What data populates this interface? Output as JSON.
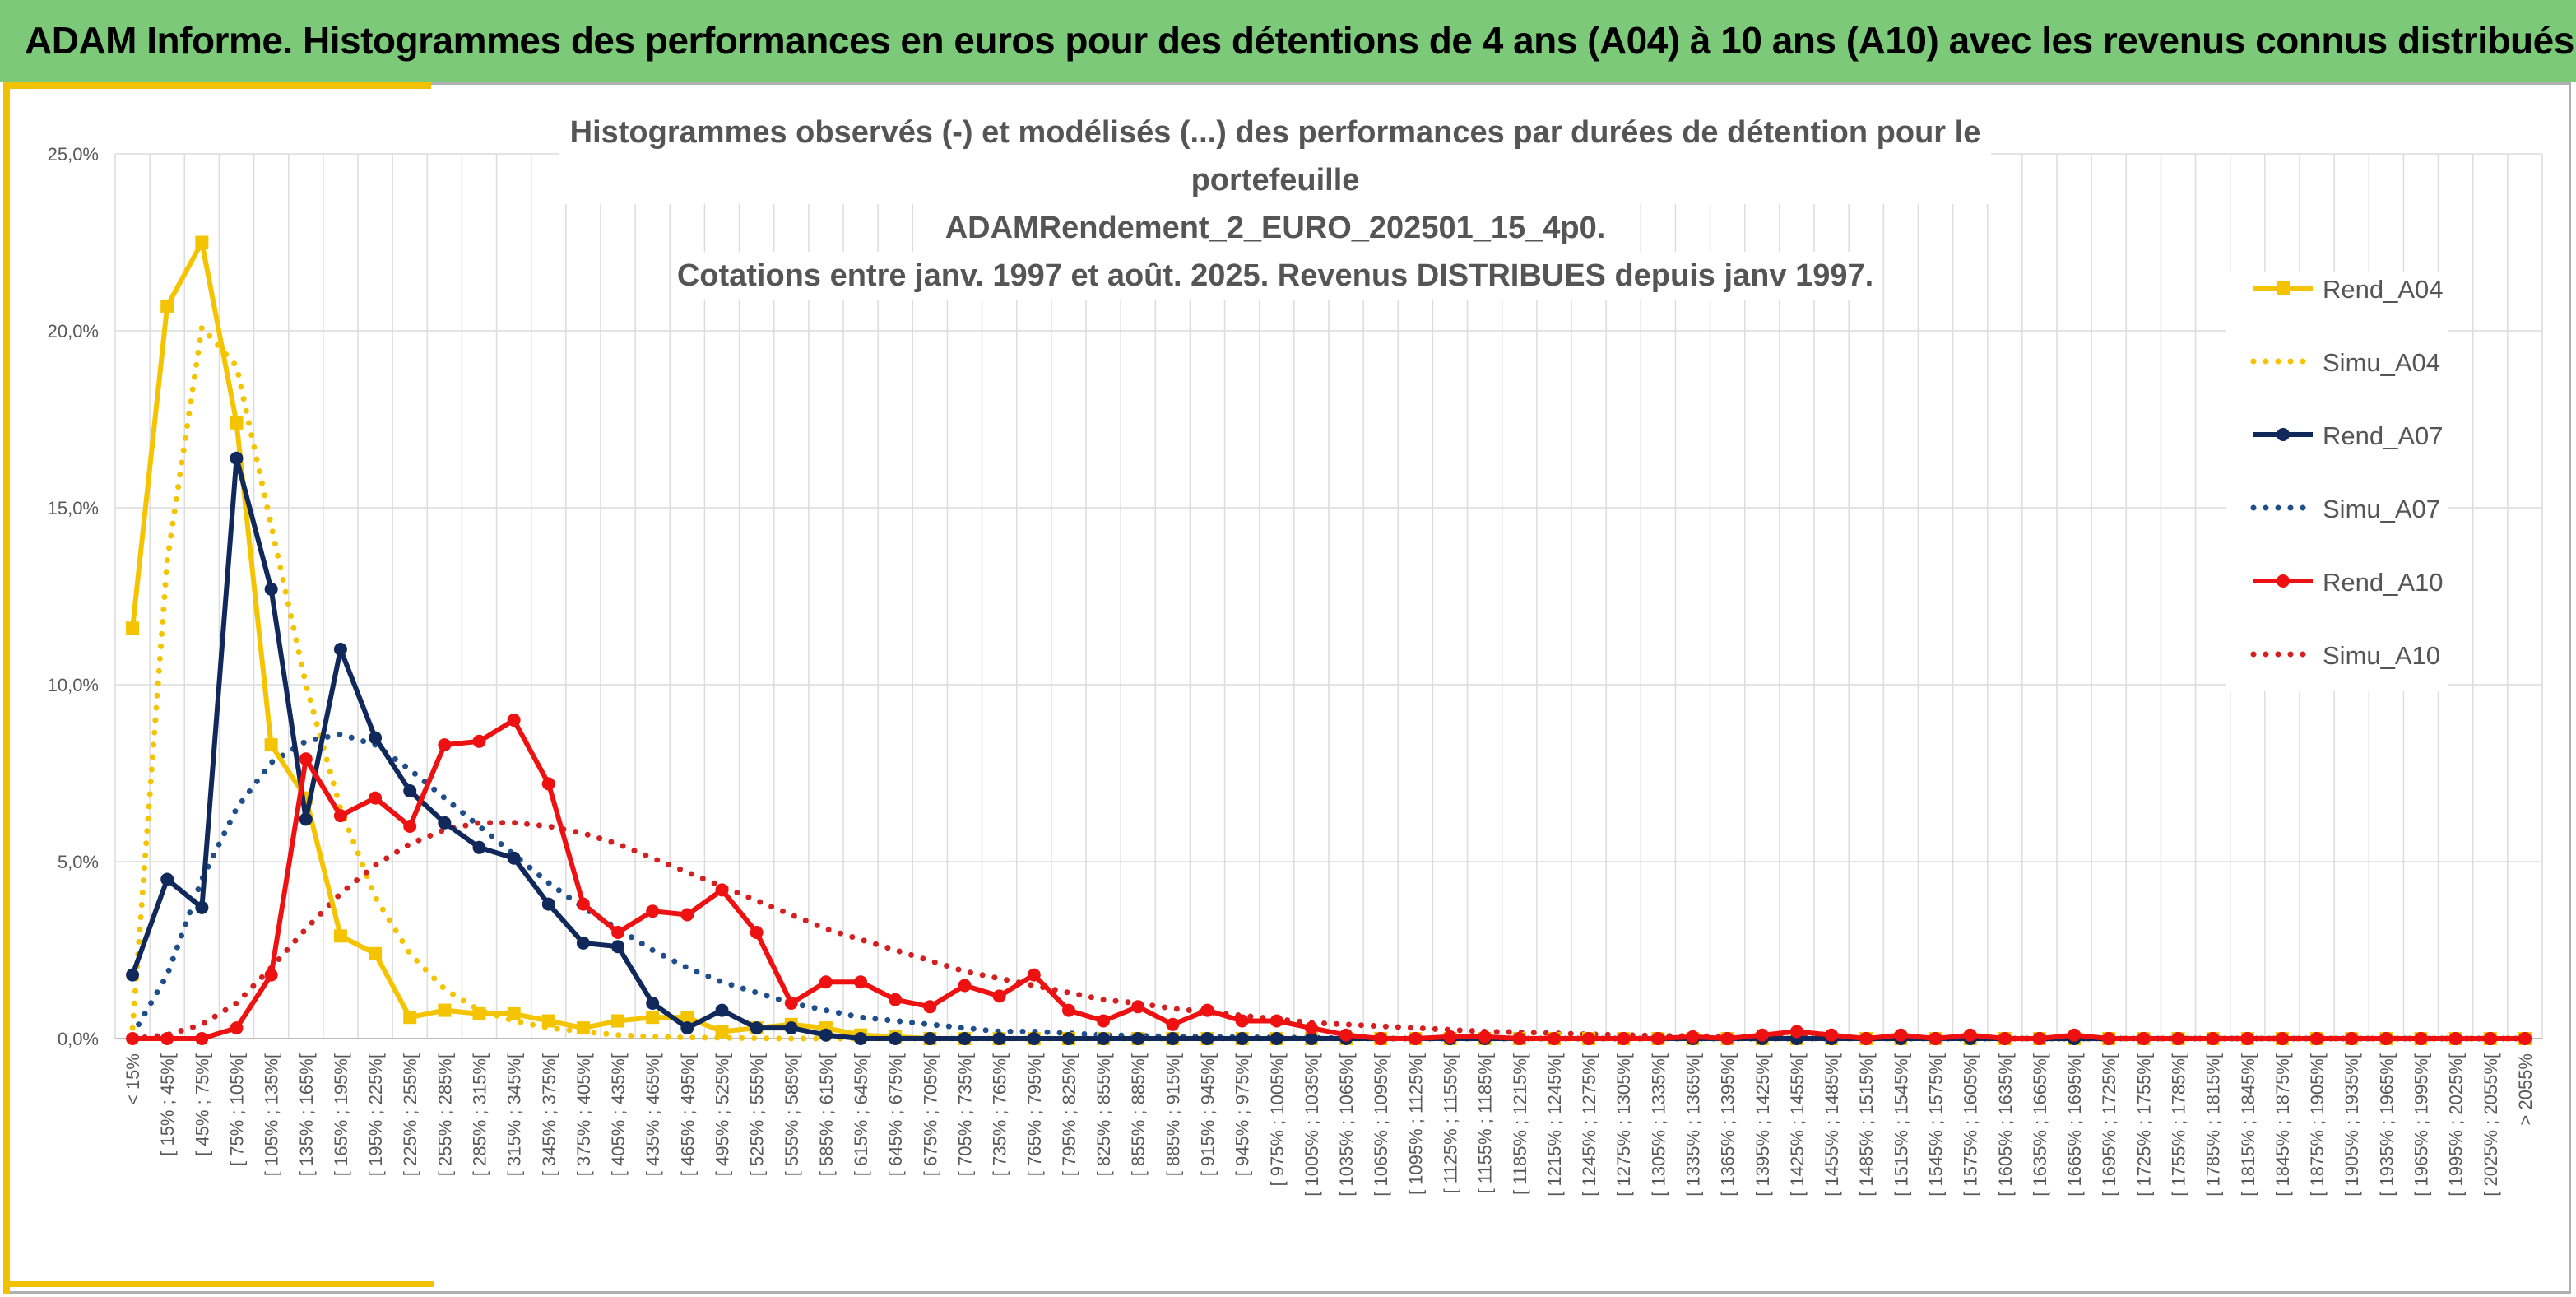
{
  "header": {
    "title": "ADAM Informe. Histogrammes des performances en euros pour des détentions de 4 ans (A04) à 10 ans (A10) avec les revenus connus distribués"
  },
  "chart_data": {
    "type": "line",
    "title_lines": [
      "Histogrammes observés (-) et modélisés (...) des performances par durées de détention pour le portefeuille",
      "ADAMRendement_2_EURO_202501_15_4p0.",
      "Cotations entre janv. 1997 et août. 2025. Revenus DISTRIBUES depuis janv 1997."
    ],
    "ylim": [
      0,
      25
    ],
    "yticks": [
      "0,0%",
      "5,0%",
      "10,0%",
      "15,0%",
      "20,0%",
      "25,0%"
    ],
    "grid": true,
    "legend_position": "right",
    "categories": [
      "< 15%",
      "[ 15% ; 45%[",
      "[ 45% ; 75%[",
      "[ 75% ; 105%[",
      "[ 105% ; 135%[",
      "[ 135% ; 165%[",
      "[ 165% ; 195%[",
      "[ 195% ; 225%[",
      "[ 225% ; 255%[",
      "[ 255% ; 285%[",
      "[ 285% ; 315%[",
      "[ 315% ; 345%[",
      "[ 345% ; 375%[",
      "[ 375% ; 405%[",
      "[ 405% ; 435%[",
      "[ 435% ; 465%[",
      "[ 465% ; 495%[",
      "[ 495% ; 525%[",
      "[ 525% ; 555%[",
      "[ 555% ; 585%[",
      "[ 585% ; 615%[",
      "[ 615% ; 645%[",
      "[ 645% ; 675%[",
      "[ 675% ; 705%[",
      "[ 705% ; 735%[",
      "[ 735% ; 765%[",
      "[ 765% ; 795%[",
      "[ 795% ; 825%[",
      "[ 825% ; 855%[",
      "[ 855% ; 885%[",
      "[ 885% ; 915%[",
      "[ 915% ; 945%[",
      "[ 945% ; 975%[",
      "[ 975% ; 1005%[",
      "[ 1005% ; 1035%[",
      "[ 1035% ; 1065%[",
      "[ 1065% ; 1095%[",
      "[ 1095% ; 1125%[",
      "[ 1125% ; 1155%[",
      "[ 1155% ; 1185%[",
      "[ 1185% ; 1215%[",
      "[ 1215% ; 1245%[",
      "[ 1245% ; 1275%[",
      "[ 1275% ; 1305%[",
      "[ 1305% ; 1335%[",
      "[ 1335% ; 1365%[",
      "[ 1365% ; 1395%[",
      "[ 1395% ; 1425%[",
      "[ 1425% ; 1455%[",
      "[ 1455% ; 1485%[",
      "[ 1485% ; 1515%[",
      "[ 1515% ; 1545%[",
      "[ 1545% ; 1575%[",
      "[ 1575% ; 1605%[",
      "[ 1605% ; 1635%[",
      "[ 1635% ; 1665%[",
      "[ 1665% ; 1695%[",
      "[ 1695% ; 1725%[",
      "[ 1725% ; 1755%[",
      "[ 1755% ; 1785%[",
      "[ 1785% ; 1815%[",
      "[ 1815% ; 1845%[",
      "[ 1845% ; 1875%[",
      "[ 1875% ; 1905%[",
      "[ 1905% ; 1935%[",
      "[ 1935% ; 1965%[",
      "[ 1965% ; 1995%[",
      "[ 1995% ; 2025%[",
      "[ 2025% ; 2055%[",
      "> 2055%"
    ],
    "series": [
      {
        "name": "Rend_A04",
        "color": "#f5c400",
        "style": "solid",
        "marker": "square",
        "values": [
          11.6,
          20.7,
          22.5,
          17.4,
          8.3,
          6.8,
          2.9,
          2.4,
          0.6,
          0.8,
          0.7,
          0.7,
          0.5,
          0.3,
          0.5,
          0.6,
          0.6,
          0.2,
          0.3,
          0.4,
          0.3,
          0.1,
          0.05,
          0.0,
          0.0,
          0.0,
          0.0,
          0.0,
          0.0,
          0.0,
          0.0,
          0.0,
          0.0,
          0.0,
          0.0,
          0.0,
          0.0,
          0.0,
          0.0,
          0.0,
          0.0,
          0.0,
          0.0,
          0.0,
          0.0,
          0.0,
          0.0,
          0.0,
          0.0,
          0.0,
          0.0,
          0.0,
          0.0,
          0.0,
          0.0,
          0.0,
          0.0,
          0.0,
          0.0,
          0.0,
          0.0,
          0.0,
          0.0,
          0.0,
          0.0,
          0.0,
          0.0,
          0.0,
          0.0,
          0.0
        ]
      },
      {
        "name": "Simu_A04",
        "color": "#f5c400",
        "style": "dotted",
        "marker": "none",
        "values": [
          0.3,
          13.5,
          20.1,
          19.0,
          14.5,
          10.0,
          6.5,
          4.0,
          2.4,
          1.4,
          0.8,
          0.5,
          0.3,
          0.2,
          0.1,
          0.05,
          0.03,
          0.02,
          0.01,
          0.0,
          0.0,
          0.0,
          0.0,
          0.0,
          0.0,
          0.0,
          0.0,
          0.0,
          0.0,
          0.0,
          0.0,
          0.0,
          0.0,
          0.0,
          0.0,
          0.0,
          0.0,
          0.0,
          0.0,
          0.0,
          0.0,
          0.0,
          0.0,
          0.0,
          0.0,
          0.0,
          0.0,
          0.0,
          0.0,
          0.0,
          0.0,
          0.0,
          0.0,
          0.0,
          0.0,
          0.0,
          0.0,
          0.0,
          0.0,
          0.0,
          0.0,
          0.0,
          0.0,
          0.0,
          0.0,
          0.0,
          0.0,
          0.0,
          0.0,
          0.0
        ]
      },
      {
        "name": "Rend_A07",
        "color": "#10285a",
        "style": "solid",
        "marker": "circle",
        "values": [
          1.8,
          4.5,
          3.7,
          16.4,
          12.7,
          6.2,
          11.0,
          8.5,
          7.0,
          6.1,
          5.4,
          5.1,
          3.8,
          2.7,
          2.6,
          1.0,
          0.3,
          0.8,
          0.3,
          0.3,
          0.1,
          0.0,
          0.0,
          0.0,
          0.0,
          0.0,
          0.0,
          0.0,
          0.0,
          0.0,
          0.0,
          0.0,
          0.0,
          0.0,
          0.0,
          0.0,
          0.0,
          0.0,
          0.0,
          0.0,
          0.0,
          0.0,
          0.0,
          0.0,
          0.0,
          0.0,
          0.0,
          0.0,
          0.0,
          0.0,
          0.0,
          0.0,
          0.0,
          0.0,
          0.0,
          0.0,
          0.0,
          0.0,
          0.0,
          0.0,
          0.0,
          0.0,
          0.0,
          0.0,
          0.0,
          0.0,
          0.0,
          0.0,
          0.0,
          0.0
        ]
      },
      {
        "name": "Simu_A07",
        "color": "#1f4e8a",
        "style": "dotted",
        "marker": "none",
        "values": [
          0.1,
          1.8,
          4.5,
          6.5,
          7.8,
          8.4,
          8.6,
          8.3,
          7.6,
          6.8,
          6.0,
          5.2,
          4.4,
          3.7,
          3.1,
          2.5,
          2.0,
          1.6,
          1.3,
          1.0,
          0.8,
          0.6,
          0.5,
          0.4,
          0.3,
          0.2,
          0.2,
          0.15,
          0.1,
          0.08,
          0.06,
          0.05,
          0.04,
          0.03,
          0.02,
          0.01,
          0.0,
          0.0,
          0.0,
          0.0,
          0.0,
          0.0,
          0.0,
          0.0,
          0.0,
          0.0,
          0.0,
          0.0,
          0.0,
          0.0,
          0.0,
          0.0,
          0.0,
          0.0,
          0.0,
          0.0,
          0.0,
          0.0,
          0.0,
          0.0,
          0.0,
          0.0,
          0.0,
          0.0,
          0.0,
          0.0,
          0.0,
          0.0,
          0.0,
          0.0
        ]
      },
      {
        "name": "Rend_A10",
        "color": "#ee1111",
        "style": "solid",
        "marker": "circle",
        "values": [
          0.0,
          0.0,
          0.0,
          0.3,
          1.8,
          7.9,
          6.3,
          6.8,
          6.0,
          8.3,
          8.4,
          9.0,
          7.2,
          3.8,
          3.0,
          3.6,
          3.5,
          4.2,
          3.0,
          1.0,
          1.6,
          1.6,
          1.1,
          0.9,
          1.5,
          1.2,
          1.8,
          0.8,
          0.5,
          0.9,
          0.4,
          0.8,
          0.5,
          0.5,
          0.3,
          0.1,
          0.0,
          0.0,
          0.05,
          0.05,
          0.0,
          0.0,
          0.0,
          0.0,
          0.0,
          0.05,
          0.0,
          0.1,
          0.2,
          0.1,
          0.0,
          0.1,
          0.0,
          0.1,
          0.0,
          0.0,
          0.1,
          0.0,
          0.0,
          0.0,
          0.0,
          0.0,
          0.0,
          0.0,
          0.0,
          0.0,
          0.0,
          0.0,
          0.0,
          0.0
        ]
      },
      {
        "name": "Simu_A10",
        "color": "#d42020",
        "style": "dotted",
        "marker": "none",
        "values": [
          0.0,
          0.1,
          0.4,
          1.0,
          2.0,
          3.1,
          4.1,
          4.9,
          5.5,
          5.9,
          6.1,
          6.1,
          6.0,
          5.8,
          5.5,
          5.1,
          4.7,
          4.3,
          3.9,
          3.5,
          3.1,
          2.8,
          2.5,
          2.2,
          1.9,
          1.7,
          1.5,
          1.3,
          1.1,
          1.0,
          0.85,
          0.75,
          0.65,
          0.55,
          0.45,
          0.4,
          0.35,
          0.3,
          0.25,
          0.2,
          0.18,
          0.15,
          0.12,
          0.1,
          0.08,
          0.07,
          0.06,
          0.05,
          0.04,
          0.03,
          0.02,
          0.02,
          0.01,
          0.01,
          0.0,
          0.0,
          0.0,
          0.0,
          0.0,
          0.0,
          0.0,
          0.0,
          0.0,
          0.0,
          0.0,
          0.0,
          0.0,
          0.0,
          0.0,
          0.0
        ]
      }
    ]
  }
}
